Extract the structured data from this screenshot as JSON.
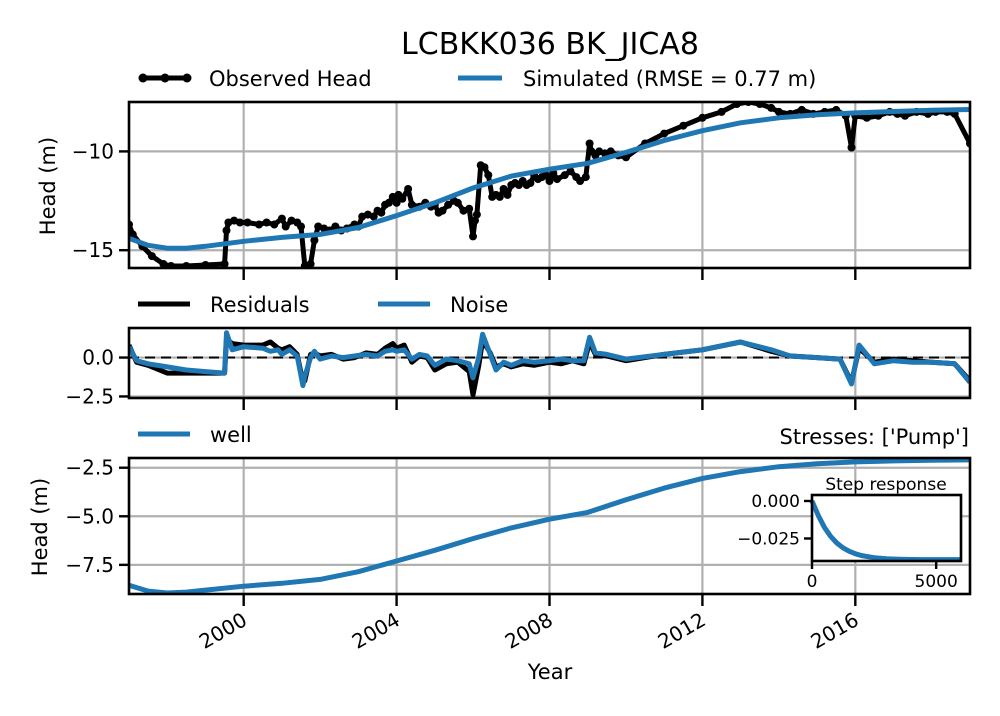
{
  "title": "LCBKK036 BK_JICA8",
  "xlabel": "Year",
  "colors": {
    "observed": "#000000",
    "simulated": "#1f77b4",
    "noise": "#1f77b4",
    "residuals": "#000000"
  },
  "x_ticks": [
    2000,
    2004,
    2008,
    2012,
    2016
  ],
  "x_range": [
    1997.0,
    2019.0
  ],
  "chart_data": [
    {
      "type": "line",
      "panel": "head",
      "ylabel": "Head (m)",
      "ylim": [
        -15.9,
        -7.5
      ],
      "yticks": [
        -10,
        -15
      ],
      "grid": true,
      "legend_placement": "top",
      "series": [
        {
          "name": "Observed Head",
          "marker": true,
          "x": [
            1997.0,
            1997.1,
            1997.35,
            1997.6,
            1997.9,
            1998.1,
            1998.5,
            1999.0,
            1999.5,
            1999.55,
            1999.6,
            1999.75,
            1999.9,
            2000.1,
            2000.4,
            2000.6,
            2000.8,
            2001.0,
            2001.1,
            2001.25,
            2001.4,
            2001.5,
            2001.6,
            2001.7,
            2001.75,
            2001.85,
            2001.95,
            2002.1,
            2002.25,
            2002.4,
            2002.55,
            2002.7,
            2002.9,
            2003.0,
            2003.1,
            2003.25,
            2003.4,
            2003.5,
            2003.6,
            2003.7,
            2003.8,
            2003.9,
            2004.0,
            2004.05,
            2004.15,
            2004.3,
            2004.4,
            2004.6,
            2004.75,
            2004.9,
            2005.0,
            2005.1,
            2005.2,
            2005.35,
            2005.5,
            2005.6,
            2005.75,
            2005.9,
            2006.0,
            2006.05,
            2006.1,
            2006.2,
            2006.3,
            2006.4,
            2006.5,
            2006.6,
            2006.7,
            2006.8,
            2006.9,
            2007.0,
            2007.1,
            2007.2,
            2007.3,
            2007.4,
            2007.5,
            2007.6,
            2007.7,
            2007.8,
            2007.9,
            2008.0,
            2008.1,
            2008.2,
            2008.4,
            2008.55,
            2008.7,
            2008.8,
            2008.95,
            2009.05,
            2009.1,
            2009.2,
            2009.3,
            2009.45,
            2009.6,
            2009.8,
            2010.0,
            2010.5,
            2011.0,
            2011.5,
            2012.0,
            2012.5,
            2012.9,
            2013.2,
            2013.5,
            2013.8,
            2014.0,
            2014.3,
            2014.6,
            2014.9,
            2015.2,
            2015.5,
            2015.75,
            2015.9,
            2016.0,
            2016.3,
            2016.6,
            2016.9,
            2017.1,
            2017.3,
            2017.6,
            2017.9,
            2018.1,
            2018.4,
            2018.6,
            2019.0
          ],
          "values": [
            -13.7,
            -14.2,
            -14.8,
            -15.3,
            -15.7,
            -15.8,
            -15.8,
            -15.75,
            -15.7,
            -14.0,
            -13.6,
            -13.5,
            -13.6,
            -13.6,
            -13.7,
            -13.6,
            -13.7,
            -13.4,
            -13.8,
            -13.5,
            -13.6,
            -13.8,
            -15.8,
            -15.8,
            -15.7,
            -14.5,
            -13.8,
            -13.9,
            -14.0,
            -13.8,
            -14.0,
            -13.9,
            -13.7,
            -13.8,
            -13.3,
            -13.2,
            -13.3,
            -13.0,
            -13.1,
            -12.7,
            -12.6,
            -12.3,
            -12.6,
            -12.2,
            -12.4,
            -11.9,
            -12.7,
            -12.8,
            -12.6,
            -12.8,
            -12.7,
            -13.1,
            -13.0,
            -12.7,
            -12.5,
            -12.6,
            -13.0,
            -12.9,
            -14.3,
            -13.5,
            -13.2,
            -10.7,
            -10.8,
            -11.2,
            -12.3,
            -12.2,
            -12.3,
            -11.9,
            -12.2,
            -11.7,
            -11.6,
            -11.7,
            -11.5,
            -11.7,
            -11.6,
            -11.2,
            -11.4,
            -11.3,
            -11.2,
            -11.5,
            -11.1,
            -11.4,
            -11.2,
            -11.0,
            -11.3,
            -11.5,
            -11.3,
            -9.6,
            -10.0,
            -10.2,
            -10.0,
            -10.1,
            -10.0,
            -10.2,
            -10.3,
            -9.6,
            -9.1,
            -8.7,
            -8.3,
            -8.0,
            -7.6,
            -7.5,
            -7.6,
            -7.8,
            -8.0,
            -8.1,
            -7.9,
            -8.1,
            -8.0,
            -7.9,
            -8.2,
            -9.8,
            -8.2,
            -8.3,
            -8.2,
            -8.0,
            -8.1,
            -8.2,
            -8.0,
            -8.1,
            -8.0,
            -8.0,
            -8.1,
            -9.6
          ]
        },
        {
          "name": "Simulated (RMSE = 0.77 m)",
          "x": [
            1997.0,
            1997.5,
            1998.0,
            1998.5,
            1999.0,
            2000.0,
            2001.0,
            2002.0,
            2003.0,
            2004.0,
            2005.0,
            2006.0,
            2007.0,
            2008.0,
            2009.0,
            2010.0,
            2011.0,
            2012.0,
            2013.0,
            2014.0,
            2015.0,
            2016.0,
            2017.0,
            2018.0,
            2019.0
          ],
          "values": [
            -14.4,
            -14.75,
            -14.9,
            -14.9,
            -14.8,
            -14.55,
            -14.35,
            -14.2,
            -13.85,
            -13.25,
            -12.6,
            -11.85,
            -11.25,
            -10.9,
            -10.6,
            -10.05,
            -9.45,
            -8.95,
            -8.55,
            -8.3,
            -8.15,
            -8.05,
            -7.98,
            -7.92,
            -7.88
          ]
        }
      ]
    },
    {
      "type": "line",
      "panel": "residuals",
      "ylim": [
        -2.6,
        1.9
      ],
      "yticks": [
        0.0,
        -2.5
      ],
      "grid": true,
      "zero_line": true,
      "legend_placement": "top",
      "series": [
        {
          "name": "Residuals",
          "x": [
            1997.0,
            1997.2,
            1997.5,
            1998.0,
            1998.5,
            1999.0,
            1999.5,
            1999.55,
            1999.7,
            2000.0,
            2000.5,
            2000.7,
            2000.9,
            2001.0,
            2001.2,
            2001.4,
            2001.55,
            2001.6,
            2001.75,
            2001.85,
            2002.0,
            2002.3,
            2002.6,
            2002.9,
            2003.2,
            2003.5,
            2003.7,
            2003.9,
            2004.0,
            2004.2,
            2004.4,
            2004.6,
            2004.8,
            2005.0,
            2005.3,
            2005.6,
            2005.9,
            2006.0,
            2006.15,
            2006.25,
            2006.45,
            2006.6,
            2006.8,
            2007.0,
            2007.3,
            2007.6,
            2008.0,
            2008.3,
            2008.6,
            2008.9,
            2009.05,
            2009.2,
            2009.5,
            2010.0,
            2011.0,
            2012.0,
            2013.0,
            2013.8,
            2014.3,
            2015.0,
            2015.6,
            2015.9,
            2016.1,
            2016.5,
            2017.0,
            2017.5,
            2018.0,
            2018.6,
            2019.0
          ],
          "values": [
            0.8,
            -0.3,
            -0.5,
            -1.0,
            -1.0,
            -1.0,
            -1.0,
            1.2,
            0.9,
            0.8,
            0.8,
            1.0,
            0.6,
            0.5,
            0.7,
            0.2,
            -1.6,
            -1.5,
            0.2,
            0.3,
            0.1,
            0.2,
            -0.1,
            0.0,
            0.3,
            0.2,
            0.6,
            0.9,
            0.6,
            0.8,
            -0.3,
            0.1,
            0.0,
            -0.8,
            -0.4,
            -0.3,
            -0.9,
            -2.4,
            -0.5,
            1.1,
            0.3,
            -0.6,
            -0.4,
            -0.6,
            -0.4,
            -0.5,
            -0.3,
            -0.4,
            -0.2,
            -0.4,
            1.0,
            0.2,
            0.1,
            -0.2,
            0.2,
            0.5,
            1.0,
            0.4,
            0.1,
            0.0,
            -0.1,
            -1.6,
            0.6,
            -0.3,
            -0.1,
            -0.2,
            -0.3,
            -0.4,
            -1.5
          ]
        },
        {
          "name": "Noise",
          "x": [
            1997.0,
            1997.2,
            1997.5,
            1998.0,
            1998.5,
            1999.0,
            1999.5,
            1999.55,
            1999.7,
            2000.0,
            2000.5,
            2000.7,
            2000.9,
            2001.0,
            2001.2,
            2001.4,
            2001.55,
            2001.6,
            2001.75,
            2001.85,
            2002.0,
            2002.3,
            2002.6,
            2002.9,
            2003.2,
            2003.5,
            2003.7,
            2003.9,
            2004.0,
            2004.2,
            2004.4,
            2004.6,
            2004.8,
            2005.0,
            2005.3,
            2005.6,
            2005.9,
            2006.0,
            2006.15,
            2006.25,
            2006.45,
            2006.6,
            2006.8,
            2007.0,
            2007.3,
            2007.6,
            2008.0,
            2008.3,
            2008.6,
            2008.9,
            2009.05,
            2009.2,
            2009.5,
            2010.0,
            2011.0,
            2012.0,
            2013.0,
            2013.8,
            2014.3,
            2015.0,
            2015.6,
            2015.9,
            2016.1,
            2016.5,
            2017.0,
            2017.5,
            2018.0,
            2018.6,
            2019.0
          ],
          "values": [
            0.7,
            -0.2,
            -0.4,
            -0.6,
            -0.8,
            -0.9,
            -1.0,
            1.6,
            0.5,
            0.7,
            0.6,
            0.4,
            0.5,
            0.2,
            0.5,
            0.1,
            -1.8,
            -1.2,
            0.0,
            0.4,
            -0.1,
            0.1,
            0.0,
            0.1,
            0.2,
            0.1,
            0.4,
            0.5,
            0.4,
            0.5,
            -0.1,
            0.2,
            0.1,
            -0.5,
            -0.1,
            -0.2,
            -0.4,
            -1.3,
            0.0,
            1.5,
            0.2,
            -0.8,
            -0.3,
            -0.5,
            -0.2,
            -0.3,
            -0.2,
            -0.1,
            -0.2,
            -0.2,
            1.3,
            0.3,
            0.2,
            -0.1,
            0.2,
            0.5,
            1.0,
            0.5,
            0.1,
            0.0,
            -0.1,
            -1.7,
            0.8,
            -0.4,
            -0.2,
            -0.3,
            -0.3,
            -0.4,
            -1.6
          ]
        }
      ]
    },
    {
      "type": "line",
      "panel": "contribution",
      "ylabel": "Head (m)",
      "ylim": [
        -9.0,
        -2.0
      ],
      "yticks": [
        -2.5,
        -5.0,
        -7.5
      ],
      "grid": true,
      "legend_placement": "top-left",
      "annotation": "Stresses: ['Pump']",
      "series": [
        {
          "name": "well",
          "x": [
            1997.0,
            1997.5,
            1998.0,
            1998.5,
            1999.0,
            2000.0,
            2001.0,
            2002.0,
            2003.0,
            2004.0,
            2005.0,
            2006.0,
            2007.0,
            2008.0,
            2009.0,
            2010.0,
            2011.0,
            2012.0,
            2013.0,
            2014.0,
            2015.0,
            2016.0,
            2017.0,
            2018.0,
            2019.0
          ],
          "values": [
            -8.55,
            -8.85,
            -8.95,
            -8.9,
            -8.8,
            -8.6,
            -8.45,
            -8.25,
            -7.85,
            -7.3,
            -6.75,
            -6.15,
            -5.6,
            -5.15,
            -4.8,
            -4.15,
            -3.55,
            -3.05,
            -2.7,
            -2.45,
            -2.3,
            -2.2,
            -2.15,
            -2.12,
            -2.1
          ]
        }
      ]
    },
    {
      "type": "line",
      "panel": "inset",
      "title": "Step response",
      "xlim": [
        0,
        6000
      ],
      "ylim": [
        -0.04,
        0.004
      ],
      "xticks": [
        0,
        5000
      ],
      "yticks": [
        0.0,
        -0.025
      ],
      "ytick_labels": [
        "0.000",
        "−0.025"
      ],
      "grid": false,
      "series": [
        {
          "name": "",
          "x": [
            0,
            250,
            500,
            750,
            1000,
            1250,
            1500,
            1750,
            2000,
            2500,
            3000,
            3500,
            4000,
            4500,
            5000,
            5500,
            6000
          ],
          "values": [
            0.0,
            -0.0095,
            -0.0175,
            -0.0235,
            -0.028,
            -0.0312,
            -0.0335,
            -0.0352,
            -0.0364,
            -0.0378,
            -0.0385,
            -0.0388,
            -0.039,
            -0.0391,
            -0.0391,
            -0.0391,
            -0.0391
          ]
        }
      ]
    }
  ]
}
